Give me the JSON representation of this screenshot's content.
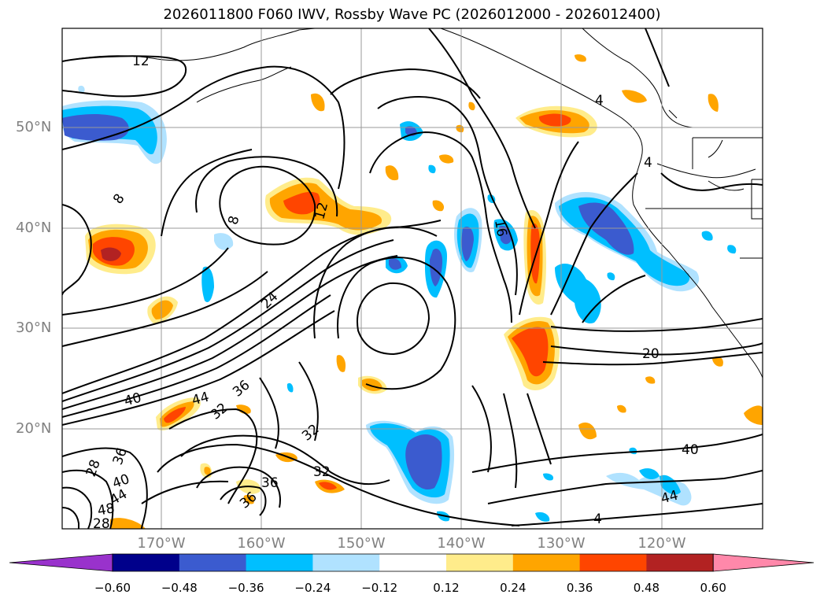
{
  "title": "2026011800 F060 IWV, Rossby Wave PC (2026012000 - 2026012400)",
  "map": {
    "lat_labels": [
      "50°N",
      "40°N",
      "30°N",
      "20°N"
    ],
    "lon_labels": [
      "170°W",
      "160°W",
      "150°W",
      "140°W",
      "130°W",
      "120°W"
    ],
    "contour_labels": [
      "12",
      "8",
      "8",
      "12",
      "16",
      "24",
      "20",
      "40",
      "44",
      "36",
      "32",
      "32",
      "28",
      "36",
      "40",
      "44",
      "48",
      "28",
      "32",
      "36",
      "36",
      "40",
      "44",
      "4",
      "4",
      "4"
    ],
    "grid": true
  },
  "colorbar": {
    "ticks": [
      "−0.60",
      "−0.48",
      "−0.36",
      "−0.24",
      "−0.12",
      "0.12",
      "0.24",
      "0.36",
      "0.48",
      "0.60"
    ],
    "colors": [
      "#9932cc",
      "#00008b",
      "#3b5bcf",
      "#00bfff",
      "#b0e2ff",
      "#ffffff",
      "#ffec8b",
      "#ffa500",
      "#ff4500",
      "#b22222",
      "#ff88aa"
    ]
  },
  "colors": {
    "positive_light": "#ffec8b",
    "positive_mid": "#ffa500",
    "positive_strong": "#ff4500",
    "positive_max": "#b22222",
    "negative_light": "#b0e2ff",
    "negative_mid": "#00bfff",
    "negative_strong": "#3b5bcf"
  }
}
